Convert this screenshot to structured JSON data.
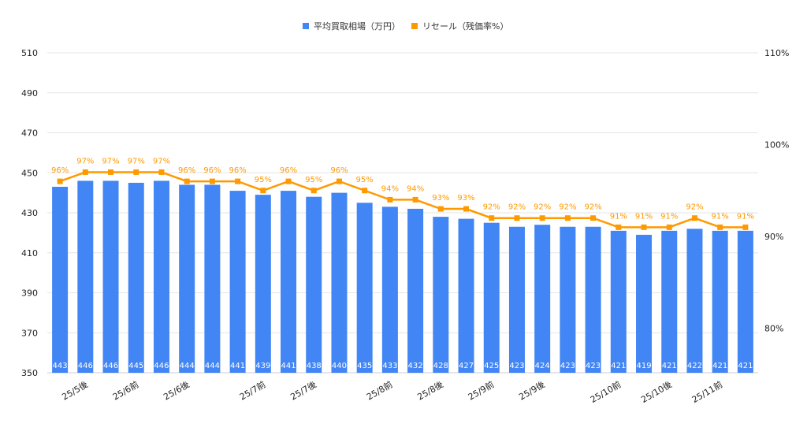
{
  "chart_data": {
    "type": "bar+line",
    "title": "",
    "legend": {
      "placement": "top"
    },
    "grid": true,
    "categories": [
      "",
      "25/5後",
      "",
      "25/6前",
      "",
      "25/6後",
      "",
      "",
      "25/7前",
      "",
      "25/7後",
      "",
      "",
      "25/8前",
      "",
      "25/8後",
      "",
      "25/9前",
      "",
      "25/9後",
      "",
      "",
      "25/10前",
      "",
      "25/10後",
      "",
      "25/11前",
      ""
    ],
    "left_axis": {
      "range": [
        350,
        510
      ],
      "ticks": [
        350,
        370,
        390,
        410,
        430,
        450,
        470,
        490,
        510
      ]
    },
    "right_axis": {
      "ticks": [
        80,
        90,
        100,
        110
      ],
      "tick_labels": [
        "80%",
        "90%",
        "100%",
        "110%"
      ]
    },
    "series": [
      {
        "name": "平均買取相場（万円）",
        "type": "bar",
        "axis": "left",
        "color": "#4285f4",
        "values": [
          443,
          446,
          446,
          445,
          446,
          444,
          444,
          441,
          439,
          441,
          438,
          440,
          435,
          433,
          432,
          428,
          427,
          425,
          423,
          424,
          423,
          423,
          421,
          419,
          421,
          422,
          421,
          421
        ]
      },
      {
        "name": "リセール（残価率%）",
        "type": "line",
        "axis": "right",
        "color": "#ff9900",
        "values": [
          96,
          97,
          97,
          97,
          97,
          96,
          96,
          96,
          95,
          96,
          95,
          96,
          95,
          94,
          94,
          93,
          93,
          92,
          92,
          92,
          92,
          92,
          91,
          91,
          91,
          92,
          91,
          91
        ]
      }
    ]
  }
}
